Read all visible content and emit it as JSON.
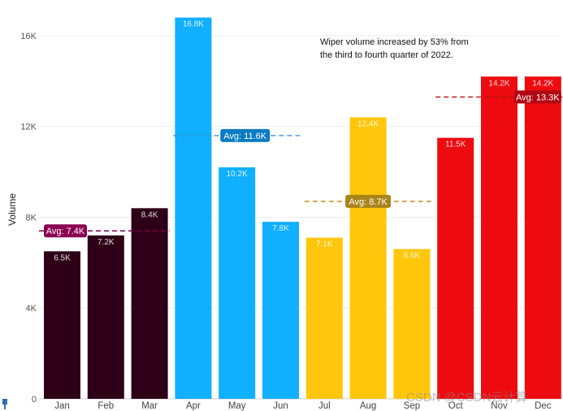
{
  "chart_data": {
    "type": "bar",
    "ylabel": "Volume",
    "ylim": [
      0,
      16700
    ],
    "y_ticks": [
      0,
      4000,
      8000,
      12000,
      16000
    ],
    "y_tick_labels": [
      "0",
      "4K",
      "8K",
      "12K",
      "16K"
    ],
    "categories": [
      "Jan",
      "Feb",
      "Mar",
      "Apr",
      "May",
      "Jun",
      "Jul",
      "Aug",
      "Sep",
      "Oct",
      "Nov",
      "Dec"
    ],
    "values": [
      6500,
      7200,
      8400,
      16800,
      10200,
      7800,
      7100,
      12400,
      6600,
      11500,
      14200,
      14200
    ],
    "value_labels": [
      "6.5K",
      "7.2K",
      "8.4K",
      "16.8K",
      "10.2K",
      "7.8K",
      "7.1K",
      "12.4K",
      "6.6K",
      "11.5K",
      "14.2K",
      "14.2K"
    ],
    "colors": [
      "#2e0017",
      "#2e0017",
      "#2e0017",
      "#10b0ff",
      "#10b0ff",
      "#10b0ff",
      "#ffc60b",
      "#ffc60b",
      "#ffc60b",
      "#ee0b10",
      "#ee0b10",
      "#ee0b10"
    ],
    "quarter_averages": [
      {
        "quarter": "Q1",
        "value": 7400,
        "label": "Avg: 7.4K",
        "line_color": "#7a0040",
        "badge_color": "#8a0052"
      },
      {
        "quarter": "Q2",
        "value": 11600,
        "label": "Avg: 11.6K",
        "line_color": "#3a8fd9",
        "badge_color": "#0b7cc4"
      },
      {
        "quarter": "Q3",
        "value": 8700,
        "label": "Avg: 8.7K",
        "line_color": "#b8860b",
        "badge_color": "#a8841a"
      },
      {
        "quarter": "Q4",
        "value": 13300,
        "label": "Avg: 13.3K",
        "line_color": "#b01010",
        "badge_color": "#b00812"
      }
    ]
  },
  "annotation": "Wiper volume increased by 53% from the third to fourth quarter of 2022.",
  "watermark": "CSDN @CSDN云计算"
}
